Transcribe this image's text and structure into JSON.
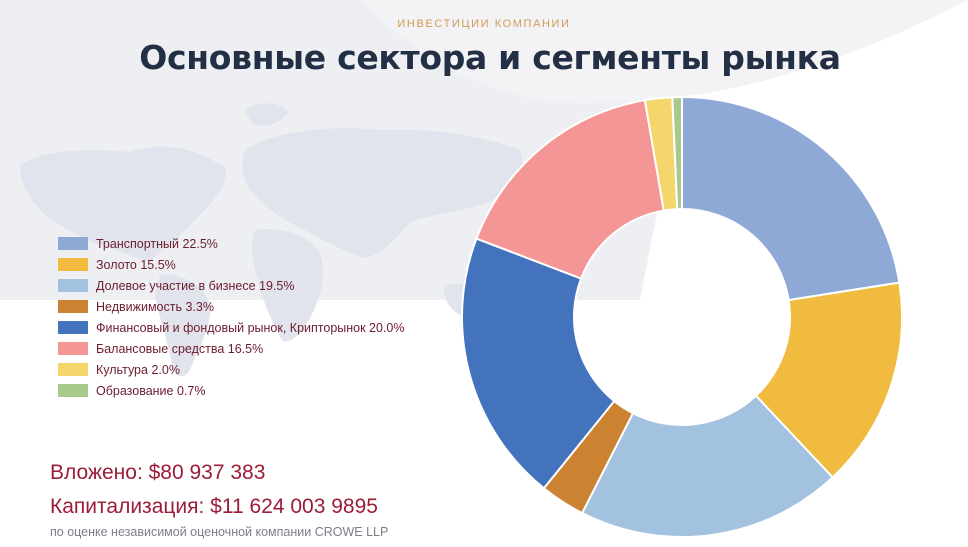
{
  "header": {
    "eyebrow": "ИНВЕСТИЦИИ КОМПАНИИ",
    "title": "Основные сектора и сегменты рынка"
  },
  "legend": [
    {
      "label": "Транспортный 22.5%",
      "color": "#8fa9d6"
    },
    {
      "label": "Золото 15.5%",
      "color": "#f0bb3e"
    },
    {
      "label": "Долевое участие в бизнесе 19.5%",
      "color": "#a3c2e0"
    },
    {
      "label": "Недвижимость 3.3%",
      "color": "#cb8332"
    },
    {
      "label": "Финансовый и фондовый рынок, Крипторынок 20.0%",
      "color": "#4373bd"
    },
    {
      "label": "Балансовые средства 16.5%",
      "color": "#f39695"
    },
    {
      "label": "Культура 2.0%",
      "color": "#f4d66c"
    },
    {
      "label": "Образование 0.7%",
      "color": "#a7c98c"
    }
  ],
  "chart_data": {
    "type": "pie",
    "style": "donut",
    "unit": "%",
    "categories": [
      "Транспортный",
      "Золото",
      "Долевое участие в бизнесе",
      "Недвижимость",
      "Финансовый и фондовый рынок, Крипторынок",
      "Балансовые средства",
      "Культура",
      "Образование"
    ],
    "values": [
      22.5,
      15.5,
      19.5,
      3.3,
      20.0,
      16.5,
      2.0,
      0.7
    ],
    "colors": [
      "#8fa9d6",
      "#f0bb3e",
      "#a3c2e0",
      "#cb8332",
      "#4373bd",
      "#f39695",
      "#f4d66c",
      "#a7c98c"
    ],
    "legend_position": "left"
  },
  "summary": {
    "invested": "Вложено: $80 937 383",
    "capitalization": "Капитализация: $11 624 003 9895",
    "note": "по оценке независимой оценочной компании CROWE LLP"
  }
}
